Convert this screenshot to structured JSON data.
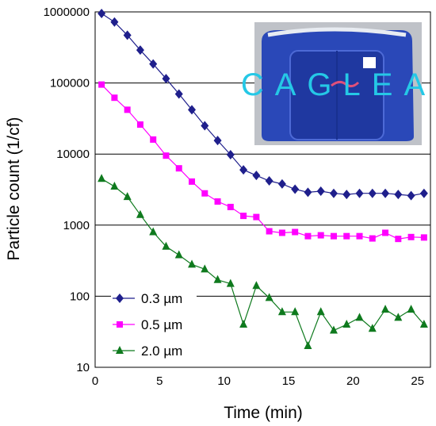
{
  "chart_data": {
    "type": "line",
    "y_scale": "log",
    "xlabel": "Time (min)",
    "ylabel": "Particle count (1/cf)",
    "xlim": [
      0,
      26
    ],
    "ylim": [
      10,
      1000000
    ],
    "x_ticks": [
      0,
      5,
      10,
      15,
      20,
      25
    ],
    "x_tick_labels": [
      "0",
      "5",
      "10",
      "15",
      "20",
      "25"
    ],
    "y_ticks": [
      10,
      100,
      1000,
      10000,
      100000,
      1000000
    ],
    "y_tick_labels": [
      "10",
      "100",
      "1000",
      "10000",
      "100000",
      "1000000"
    ],
    "grid": "horizontal lines at decades",
    "legend_position": "bottom-left",
    "series": [
      {
        "name": "0.3 µm",
        "color": "#1f1f8c",
        "marker": "diamond",
        "x": [
          0.5,
          1.5,
          2.5,
          3.5,
          4.5,
          5.5,
          6.5,
          7.5,
          8.5,
          9.5,
          10.5,
          11.5,
          12.5,
          13.5,
          14.5,
          15.5,
          16.5,
          17.5,
          18.5,
          19.5,
          20.5,
          21.5,
          22.5,
          23.5,
          24.5,
          25.5
        ],
        "y": [
          950000,
          720000,
          470000,
          290000,
          185000,
          115000,
          70000,
          42000,
          25000,
          15500,
          9800,
          6000,
          5000,
          4200,
          3800,
          3200,
          2900,
          3000,
          2800,
          2700,
          2800,
          2800,
          2800,
          2700,
          2600,
          2800
        ]
      },
      {
        "name": "0.5 µm",
        "color": "#ff00ff",
        "marker": "square",
        "x": [
          0.5,
          1.5,
          2.5,
          3.5,
          4.5,
          5.5,
          6.5,
          7.5,
          8.5,
          9.5,
          10.5,
          11.5,
          12.5,
          13.5,
          14.5,
          15.5,
          16.5,
          17.5,
          18.5,
          19.5,
          20.5,
          21.5,
          22.5,
          23.5,
          24.5,
          25.5
        ],
        "y": [
          95000,
          62000,
          42000,
          26000,
          16000,
          9500,
          6300,
          4100,
          2800,
          2150,
          1800,
          1350,
          1300,
          820,
          780,
          800,
          700,
          720,
          700,
          700,
          700,
          650,
          780,
          640,
          680,
          670
        ]
      },
      {
        "name": "2.0 µm",
        "color": "#0f7a1e",
        "marker": "triangle",
        "x": [
          0.5,
          1.5,
          2.5,
          3.5,
          4.5,
          5.5,
          6.5,
          7.5,
          8.5,
          9.5,
          10.5,
          11.5,
          12.5,
          13.5,
          14.5,
          15.5,
          16.5,
          17.5,
          18.5,
          19.5,
          20.5,
          21.5,
          22.5,
          23.5,
          24.5,
          25.5
        ],
        "y": [
          4500,
          3500,
          2500,
          1400,
          800,
          500,
          380,
          280,
          240,
          170,
          150,
          40,
          140,
          95,
          60,
          60,
          20,
          60,
          33,
          40,
          50,
          35,
          65,
          50,
          65,
          40
        ]
      }
    ]
  },
  "inset": {
    "logo_text": "CAGLEA",
    "colors": {
      "tent": "#2a48b8",
      "frame": "#cfd2d8",
      "logo": "#25c8e6",
      "logo_accent": "#e0507a"
    }
  }
}
